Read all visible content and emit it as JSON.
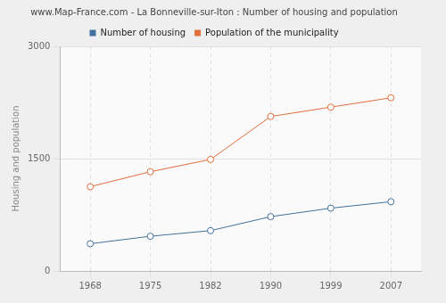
{
  "chart_data": {
    "type": "line",
    "title": "www.Map-France.com - La Bonneville-sur-Iton : Number of housing and population",
    "y_label": "Housing and population",
    "categories": [
      "1968",
      "1975",
      "1982",
      "1990",
      "1999",
      "2007"
    ],
    "series": [
      {
        "name": "Number of housing",
        "color": "#43719e",
        "values": [
          363,
          463,
          538,
          725,
          838,
          925
        ]
      },
      {
        "name": "Population of the municipality",
        "color": "#e0703c",
        "values": [
          1125,
          1325,
          1489,
          2063,
          2188,
          2313
        ]
      }
    ],
    "ylim": [
      0,
      3000
    ],
    "yticks": [
      0,
      1500,
      3000
    ],
    "grid": true,
    "legend": "top",
    "marker": "circle",
    "line_style": "solid"
  }
}
